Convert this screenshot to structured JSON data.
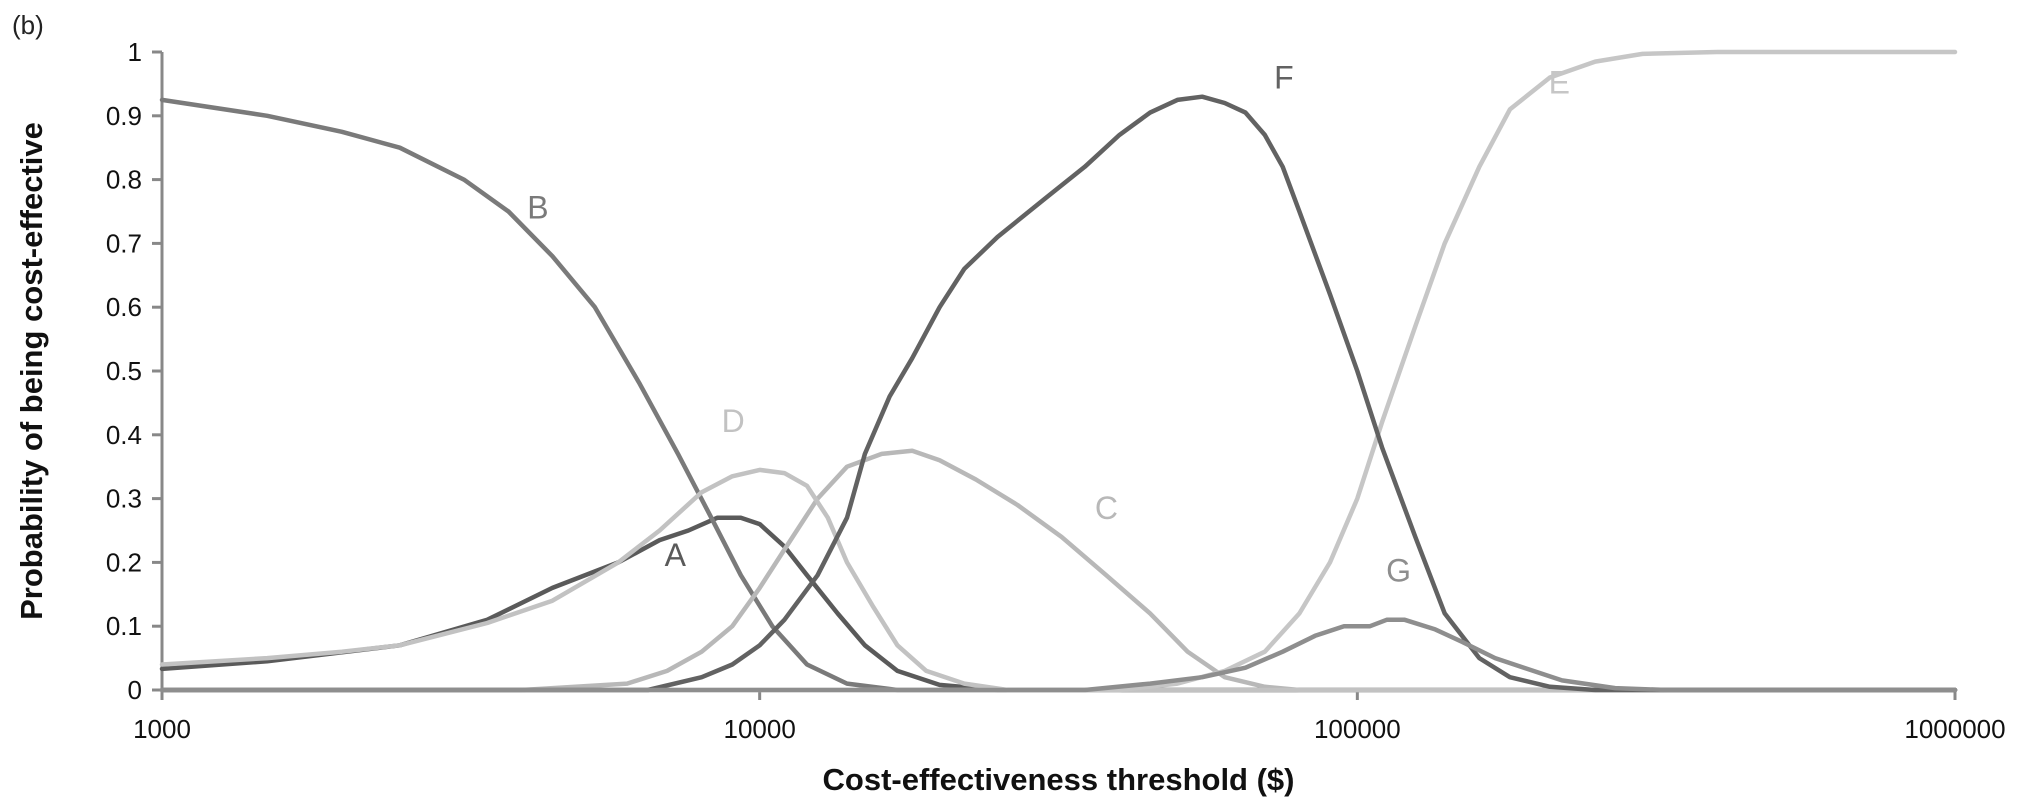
{
  "panel_label": "(b)",
  "chart_data": {
    "type": "line",
    "xlabel": "Cost-effectiveness threshold ($)",
    "ylabel": "Probability of being cost-effective",
    "x_scale": "log",
    "xlim": [
      1000,
      1000000
    ],
    "ylim": [
      0,
      1
    ],
    "x_ticks": [
      "1000",
      "10000",
      "100000",
      "1000000"
    ],
    "y_ticks": [
      "0",
      "0.1",
      "0.2",
      "0.3",
      "0.4",
      "0.5",
      "0.6",
      "0.7",
      "0.8",
      "0.9",
      "1"
    ],
    "grid": false,
    "legend": "none",
    "series": [
      {
        "name": "A",
        "color": "#5a5a5a",
        "points": [
          [
            1000,
            0.033
          ],
          [
            1500,
            0.045
          ],
          [
            2500,
            0.07
          ],
          [
            3500,
            0.11
          ],
          [
            4500,
            0.16
          ],
          [
            5800,
            0.2
          ],
          [
            6800,
            0.235
          ],
          [
            7600,
            0.25
          ],
          [
            8500,
            0.27
          ],
          [
            9300,
            0.27
          ],
          [
            10000,
            0.26
          ],
          [
            11000,
            0.225
          ],
          [
            12000,
            0.18
          ],
          [
            13500,
            0.12
          ],
          [
            15000,
            0.07
          ],
          [
            17000,
            0.03
          ],
          [
            20000,
            0.008
          ],
          [
            25000,
            0.0
          ],
          [
            1000000,
            0.0
          ]
        ]
      },
      {
        "name": "B",
        "color": "#7a7a7a",
        "points": [
          [
            1000,
            0.925
          ],
          [
            1500,
            0.9
          ],
          [
            2000,
            0.875
          ],
          [
            2500,
            0.85
          ],
          [
            3200,
            0.8
          ],
          [
            3800,
            0.75
          ],
          [
            4500,
            0.68
          ],
          [
            5300,
            0.6
          ],
          [
            6300,
            0.48
          ],
          [
            7300,
            0.37
          ],
          [
            8300,
            0.27
          ],
          [
            9300,
            0.18
          ],
          [
            10500,
            0.1
          ],
          [
            12000,
            0.04
          ],
          [
            14000,
            0.01
          ],
          [
            17000,
            0.0
          ],
          [
            1000000,
            0.0
          ]
        ]
      },
      {
        "name": "C",
        "color": "#b8b8b8",
        "points": [
          [
            1000,
            0.0
          ],
          [
            4000,
            0.0
          ],
          [
            6000,
            0.01
          ],
          [
            7000,
            0.03
          ],
          [
            8000,
            0.06
          ],
          [
            9000,
            0.1
          ],
          [
            10000,
            0.16
          ],
          [
            11000,
            0.22
          ],
          [
            12500,
            0.3
          ],
          [
            14000,
            0.35
          ],
          [
            16000,
            0.37
          ],
          [
            18000,
            0.375
          ],
          [
            20000,
            0.36
          ],
          [
            23000,
            0.33
          ],
          [
            27000,
            0.29
          ],
          [
            32000,
            0.24
          ],
          [
            38000,
            0.18
          ],
          [
            45000,
            0.12
          ],
          [
            52000,
            0.06
          ],
          [
            60000,
            0.02
          ],
          [
            70000,
            0.005
          ],
          [
            80000,
            0.0
          ],
          [
            1000000,
            0.0
          ]
        ]
      },
      {
        "name": "D",
        "color": "#c2c2c2",
        "points": [
          [
            1000,
            0.04
          ],
          [
            1500,
            0.05
          ],
          [
            2000,
            0.06
          ],
          [
            2500,
            0.07
          ],
          [
            3500,
            0.105
          ],
          [
            4500,
            0.14
          ],
          [
            5800,
            0.2
          ],
          [
            6800,
            0.25
          ],
          [
            8000,
            0.31
          ],
          [
            9000,
            0.335
          ],
          [
            10000,
            0.345
          ],
          [
            11000,
            0.34
          ],
          [
            12000,
            0.32
          ],
          [
            13000,
            0.27
          ],
          [
            14000,
            0.2
          ],
          [
            15500,
            0.13
          ],
          [
            17000,
            0.07
          ],
          [
            19000,
            0.03
          ],
          [
            22000,
            0.01
          ],
          [
            26000,
            0.0
          ],
          [
            1000000,
            0.0
          ]
        ]
      },
      {
        "name": "E",
        "color": "#c6c6c6",
        "points": [
          [
            1000,
            0.0
          ],
          [
            40000,
            0.0
          ],
          [
            50000,
            0.01
          ],
          [
            60000,
            0.03
          ],
          [
            70000,
            0.06
          ],
          [
            80000,
            0.12
          ],
          [
            90000,
            0.2
          ],
          [
            100000,
            0.3
          ],
          [
            110000,
            0.42
          ],
          [
            125000,
            0.57
          ],
          [
            140000,
            0.7
          ],
          [
            160000,
            0.82
          ],
          [
            180000,
            0.91
          ],
          [
            210000,
            0.96
          ],
          [
            250000,
            0.985
          ],
          [
            300000,
            0.997
          ],
          [
            400000,
            1.0
          ],
          [
            1000000,
            1.0
          ]
        ]
      },
      {
        "name": "F",
        "color": "#626262",
        "points": [
          [
            1000,
            0.0
          ],
          [
            6500,
            0.0
          ],
          [
            8000,
            0.02
          ],
          [
            9000,
            0.04
          ],
          [
            10000,
            0.07
          ],
          [
            11000,
            0.11
          ],
          [
            12500,
            0.18
          ],
          [
            14000,
            0.27
          ],
          [
            15000,
            0.37
          ],
          [
            16500,
            0.46
          ],
          [
            18000,
            0.52
          ],
          [
            20000,
            0.6
          ],
          [
            22000,
            0.66
          ],
          [
            25000,
            0.71
          ],
          [
            30000,
            0.77
          ],
          [
            35000,
            0.82
          ],
          [
            40000,
            0.87
          ],
          [
            45000,
            0.905
          ],
          [
            50000,
            0.925
          ],
          [
            55000,
            0.93
          ],
          [
            60000,
            0.92
          ],
          [
            65000,
            0.905
          ],
          [
            70000,
            0.87
          ],
          [
            75000,
            0.82
          ],
          [
            80000,
            0.75
          ],
          [
            90000,
            0.62
          ],
          [
            100000,
            0.5
          ],
          [
            110000,
            0.38
          ],
          [
            125000,
            0.24
          ],
          [
            140000,
            0.12
          ],
          [
            160000,
            0.05
          ],
          [
            180000,
            0.02
          ],
          [
            210000,
            0.005
          ],
          [
            250000,
            0.0
          ],
          [
            1000000,
            0.0
          ]
        ]
      },
      {
        "name": "G",
        "color": "#8e8e8e",
        "points": [
          [
            1000,
            0.0
          ],
          [
            35000,
            0.0
          ],
          [
            45000,
            0.01
          ],
          [
            55000,
            0.02
          ],
          [
            65000,
            0.035
          ],
          [
            75000,
            0.06
          ],
          [
            85000,
            0.085
          ],
          [
            95000,
            0.1
          ],
          [
            105000,
            0.1
          ],
          [
            112000,
            0.11
          ],
          [
            120000,
            0.11
          ],
          [
            135000,
            0.095
          ],
          [
            150000,
            0.075
          ],
          [
            170000,
            0.05
          ],
          [
            190000,
            0.035
          ],
          [
            220000,
            0.015
          ],
          [
            270000,
            0.003
          ],
          [
            330000,
            0.0
          ],
          [
            1000000,
            0.0
          ]
        ]
      }
    ]
  }
}
